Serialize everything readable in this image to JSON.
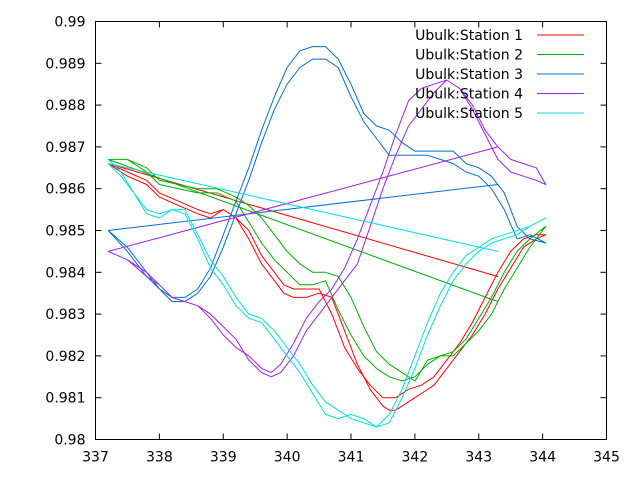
{
  "chart_data": {
    "type": "line",
    "title": "",
    "xlabel": "",
    "ylabel": "",
    "xlim": [
      337,
      345
    ],
    "ylim": [
      0.98,
      0.99
    ],
    "grid": false,
    "legend_position": "top-right",
    "x_ticks": [
      337,
      338,
      339,
      340,
      341,
      342,
      343,
      344,
      345
    ],
    "x_tick_labels": [
      "337",
      "338",
      "339",
      "340",
      "341",
      "342",
      "343",
      "344",
      "345"
    ],
    "y_ticks": [
      0.98,
      0.981,
      0.982,
      0.983,
      0.984,
      0.985,
      0.986,
      0.987,
      0.988,
      0.989,
      0.99
    ],
    "y_tick_labels": [
      "0.98",
      "0.981",
      "0.982",
      "0.983",
      "0.984",
      "0.985",
      "0.986",
      "0.987",
      "0.988",
      "0.989",
      "0.99"
    ],
    "series": [
      {
        "name": "Ubulk:Station 1",
        "color": "#ff0000",
        "x": [
          337.2,
          337.5,
          337.8,
          338.0,
          338.3,
          338.6,
          338.8,
          339.0,
          339.2,
          339.4,
          339.6,
          339.8,
          339.95,
          340.1,
          340.3,
          340.5,
          340.7,
          340.9,
          341.1,
          341.3,
          341.5,
          341.7,
          341.9,
          342.1,
          342.3,
          342.5,
          342.7,
          342.9,
          343.1,
          343.3,
          343.5,
          343.7,
          343.9,
          344.05,
          343.9,
          343.7,
          343.5,
          343.3,
          343.1,
          342.9,
          342.7,
          342.5,
          342.3,
          342.1,
          341.9,
          341.7,
          341.6,
          341.5,
          341.3,
          341.1,
          340.9,
          340.7,
          340.5,
          340.3,
          340.1,
          339.95,
          339.8,
          339.6,
          339.4,
          339.2,
          339.0,
          338.8,
          338.6,
          338.3,
          338.0,
          337.8,
          337.5,
          337.2,
          343.3
        ],
        "y": [
          0.9866,
          0.9864,
          0.9862,
          0.9859,
          0.9857,
          0.9855,
          0.9854,
          0.9855,
          0.9853,
          0.985,
          0.9844,
          0.984,
          0.9837,
          0.9836,
          0.9836,
          0.9836,
          0.983,
          0.9822,
          0.9817,
          0.9813,
          0.981,
          0.981,
          0.9812,
          0.9813,
          0.9815,
          0.9819,
          0.9823,
          0.9828,
          0.9834,
          0.984,
          0.9845,
          0.9848,
          0.9849,
          0.9849,
          0.9848,
          0.9846,
          0.9841,
          0.9836,
          0.983,
          0.9825,
          0.9821,
          0.9817,
          0.9813,
          0.9811,
          0.9809,
          0.9807,
          0.9807,
          0.9808,
          0.9812,
          0.9818,
          0.9826,
          0.9834,
          0.9835,
          0.9834,
          0.9834,
          0.9835,
          0.9838,
          0.9842,
          0.9848,
          0.9853,
          0.9855,
          0.9853,
          0.9854,
          0.9856,
          0.9858,
          0.9861,
          0.9863,
          0.9866,
          0.9839
        ]
      },
      {
        "name": "Ubulk:Station 2",
        "color": "#00b000",
        "x": [
          337.2,
          337.5,
          337.8,
          338.0,
          338.3,
          338.6,
          338.9,
          339.2,
          339.4,
          339.6,
          339.8,
          340.0,
          340.2,
          340.4,
          340.6,
          340.8,
          341.0,
          341.2,
          341.4,
          341.6,
          341.8,
          342.0,
          342.2,
          342.4,
          342.6,
          342.8,
          343.0,
          343.2,
          343.4,
          343.6,
          343.8,
          344.05,
          343.8,
          343.6,
          343.4,
          343.2,
          343.0,
          342.8,
          342.6,
          342.4,
          342.2,
          342.0,
          341.8,
          341.6,
          341.4,
          341.2,
          341.0,
          340.8,
          340.6,
          340.4,
          340.2,
          340.0,
          339.8,
          339.6,
          339.4,
          339.2,
          338.9,
          338.6,
          338.3,
          338.0,
          337.8,
          337.5,
          337.2,
          343.3
        ],
        "y": [
          0.9867,
          0.9867,
          0.9864,
          0.9861,
          0.986,
          0.9859,
          0.9859,
          0.9857,
          0.9852,
          0.9847,
          0.9843,
          0.984,
          0.9837,
          0.9837,
          0.9838,
          0.9831,
          0.9825,
          0.982,
          0.9817,
          0.9815,
          0.9814,
          0.9815,
          0.9818,
          0.982,
          0.9821,
          0.9824,
          0.9829,
          0.9834,
          0.984,
          0.9845,
          0.9848,
          0.9851,
          0.9846,
          0.9841,
          0.9836,
          0.983,
          0.9826,
          0.9823,
          0.982,
          0.982,
          0.9819,
          0.9814,
          0.9816,
          0.9818,
          0.9821,
          0.9827,
          0.9834,
          0.9839,
          0.984,
          0.984,
          0.9842,
          0.9845,
          0.9849,
          0.9853,
          0.9856,
          0.9858,
          0.986,
          0.986,
          0.9861,
          0.9862,
          0.9865,
          0.9867,
          0.9867,
          0.9833
        ]
      },
      {
        "name": "Ubulk:Station 3",
        "color": "#0070d0",
        "x": [
          337.2,
          337.5,
          337.8,
          338.0,
          338.2,
          338.4,
          338.6,
          338.8,
          339.0,
          339.2,
          339.4,
          339.6,
          339.8,
          340.0,
          340.2,
          340.4,
          340.6,
          340.8,
          341.0,
          341.2,
          341.4,
          341.6,
          341.8,
          342.0,
          342.2,
          342.4,
          342.6,
          342.8,
          343.0,
          343.2,
          343.4,
          343.6,
          343.8,
          344.05,
          343.8,
          343.6,
          343.4,
          343.2,
          343.0,
          342.8,
          342.6,
          342.4,
          342.2,
          342.0,
          341.8,
          341.6,
          341.4,
          341.2,
          341.0,
          340.8,
          340.6,
          340.4,
          340.2,
          340.0,
          339.8,
          339.6,
          339.4,
          339.2,
          339.0,
          338.8,
          338.6,
          338.4,
          338.2,
          338.0,
          337.8,
          337.5,
          337.2,
          343.3
        ],
        "y": [
          0.985,
          0.9846,
          0.984,
          0.9836,
          0.9834,
          0.9834,
          0.9836,
          0.9841,
          0.9849,
          0.9857,
          0.9865,
          0.9874,
          0.9882,
          0.9889,
          0.9893,
          0.9894,
          0.9894,
          0.9891,
          0.9885,
          0.9878,
          0.9875,
          0.9874,
          0.9871,
          0.9869,
          0.9869,
          0.9869,
          0.9869,
          0.9866,
          0.9865,
          0.9863,
          0.9859,
          0.9851,
          0.9848,
          0.9847,
          0.9849,
          0.9848,
          0.9855,
          0.986,
          0.9863,
          0.9864,
          0.9866,
          0.9867,
          0.9868,
          0.9868,
          0.9868,
          0.9868,
          0.9872,
          0.9876,
          0.9882,
          0.9889,
          0.9891,
          0.9891,
          0.9889,
          0.9885,
          0.9879,
          0.9871,
          0.9862,
          0.9854,
          0.9846,
          0.9839,
          0.9835,
          0.9833,
          0.9833,
          0.9836,
          0.9839,
          0.9845,
          0.985,
          0.9861
        ]
      },
      {
        "name": "Ubulk:Station 4",
        "color": "#a020f0",
        "x": [
          337.2,
          337.5,
          337.8,
          338.0,
          338.2,
          338.4,
          338.6,
          338.8,
          339.0,
          339.2,
          339.4,
          339.6,
          339.75,
          339.9,
          340.1,
          340.3,
          340.5,
          340.7,
          340.9,
          341.1,
          341.3,
          341.5,
          341.7,
          341.9,
          342.1,
          342.3,
          342.5,
          342.7,
          342.9,
          343.1,
          343.3,
          343.5,
          343.7,
          343.9,
          344.05,
          343.9,
          343.7,
          343.5,
          343.3,
          343.1,
          342.9,
          342.7,
          342.5,
          342.3,
          342.1,
          341.9,
          341.7,
          341.5,
          341.3,
          341.1,
          340.9,
          340.7,
          340.5,
          340.3,
          340.1,
          339.9,
          339.75,
          339.6,
          339.4,
          339.2,
          339.0,
          338.8,
          338.6,
          338.4,
          338.2,
          338.0,
          337.8,
          337.5,
          337.2,
          343.3
        ],
        "y": [
          0.9845,
          0.9843,
          0.984,
          0.9837,
          0.9834,
          0.9833,
          0.9832,
          0.9829,
          0.9825,
          0.9822,
          0.982,
          0.9817,
          0.9816,
          0.9818,
          0.9823,
          0.9829,
          0.9833,
          0.9836,
          0.9841,
          0.9848,
          0.9856,
          0.9864,
          0.9873,
          0.9881,
          0.9884,
          0.9885,
          0.9886,
          0.9884,
          0.9879,
          0.9873,
          0.9867,
          0.9864,
          0.9863,
          0.9862,
          0.9861,
          0.9865,
          0.9866,
          0.9867,
          0.987,
          0.9874,
          0.988,
          0.9884,
          0.9886,
          0.9883,
          0.9879,
          0.9875,
          0.9868,
          0.986,
          0.9851,
          0.9842,
          0.9838,
          0.9834,
          0.983,
          0.9826,
          0.982,
          0.9816,
          0.9815,
          0.9816,
          0.9819,
          0.9824,
          0.9827,
          0.983,
          0.9832,
          0.9833,
          0.9834,
          0.9837,
          0.9839,
          0.9843,
          0.9845,
          0.987
        ]
      },
      {
        "name": "Ubulk:Station 5",
        "color": "#00e0e0",
        "x": [
          337.2,
          337.4,
          337.6,
          337.8,
          338.0,
          338.2,
          338.4,
          338.6,
          338.8,
          339.0,
          339.2,
          339.4,
          339.6,
          339.8,
          340.0,
          340.2,
          340.4,
          340.6,
          340.8,
          341.0,
          341.2,
          341.4,
          341.6,
          341.8,
          342.0,
          342.2,
          342.4,
          342.6,
          342.8,
          343.0,
          343.2,
          343.4,
          343.6,
          343.8,
          344.05,
          343.8,
          343.6,
          343.4,
          343.2,
          343.0,
          342.8,
          342.6,
          342.4,
          342.2,
          342.0,
          341.8,
          341.6,
          341.4,
          341.2,
          341.0,
          340.8,
          340.6,
          340.4,
          340.2,
          340.0,
          339.8,
          339.6,
          339.4,
          339.2,
          339.0,
          338.8,
          338.6,
          338.4,
          338.2,
          338.0,
          337.8,
          337.6,
          337.4,
          337.2,
          343.3
        ],
        "y": [
          0.9867,
          0.9864,
          0.9859,
          0.9854,
          0.9853,
          0.9855,
          0.9854,
          0.9848,
          0.9841,
          0.9837,
          0.9832,
          0.9829,
          0.9828,
          0.9824,
          0.982,
          0.9816,
          0.9811,
          0.9806,
          0.9805,
          0.9806,
          0.9805,
          0.9803,
          0.9806,
          0.9812,
          0.982,
          0.9828,
          0.9835,
          0.984,
          0.9844,
          0.9846,
          0.9848,
          0.9849,
          0.985,
          0.9851,
          0.9853,
          0.9851,
          0.9849,
          0.9848,
          0.9847,
          0.9845,
          0.9842,
          0.9838,
          0.9832,
          0.9825,
          0.9817,
          0.981,
          0.9804,
          0.9803,
          0.9804,
          0.9805,
          0.9807,
          0.9809,
          0.9813,
          0.9818,
          0.9822,
          0.9826,
          0.9829,
          0.983,
          0.9834,
          0.9839,
          0.9843,
          0.9849,
          0.9855,
          0.9855,
          0.9854,
          0.9855,
          0.9859,
          0.9863,
          0.9866,
          0.9845
        ]
      }
    ]
  }
}
